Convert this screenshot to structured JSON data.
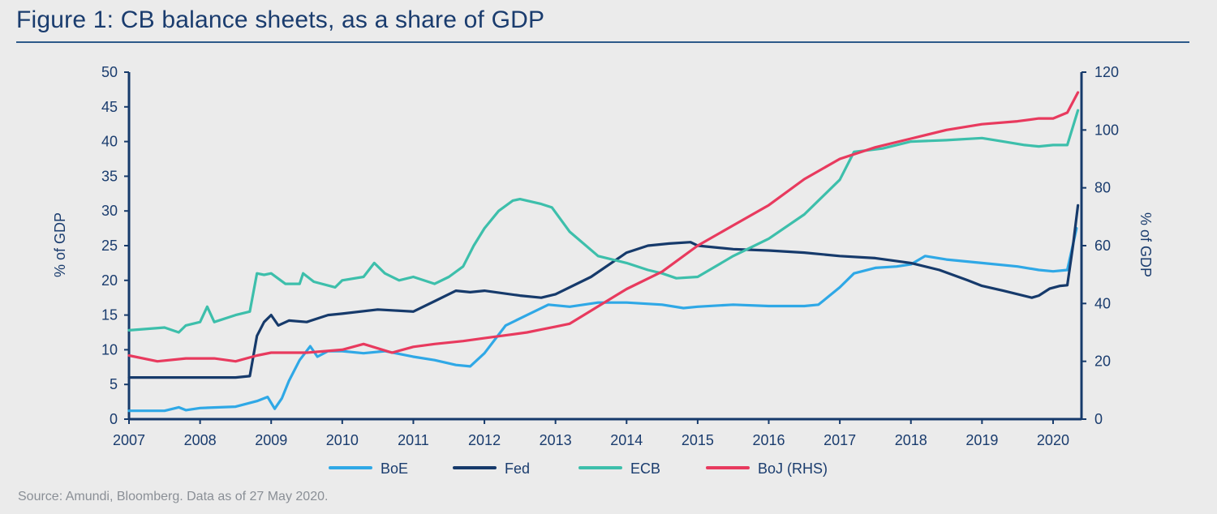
{
  "page": {
    "title": "Figure 1: CB balance sheets, as a share of GDP",
    "source": "Source: Amundi, Bloomberg. Data as of 27 May 2020."
  },
  "chart_data": {
    "type": "line",
    "title": "Figure 1: CB balance sheets, as a share of GDP",
    "xlabel": "",
    "ylabel": "% of GDP",
    "ylabel_right": "% of GDP",
    "xlim": [
      2007,
      2020.4
    ],
    "ylim": [
      0,
      50
    ],
    "ylim_right": [
      0,
      120
    ],
    "x_ticks": [
      "2007",
      "2008",
      "2009",
      "2010",
      "2011",
      "2012",
      "2013",
      "2014",
      "2015",
      "2016",
      "2017",
      "2018",
      "2019",
      "2020"
    ],
    "y_ticks": [
      "0",
      "5",
      "10",
      "15",
      "20",
      "25",
      "30",
      "35",
      "40",
      "45",
      "50"
    ],
    "y_ticks_right": [
      "0",
      "20",
      "40",
      "60",
      "80",
      "100",
      "120"
    ],
    "legend_position": "bottom",
    "series": [
      {
        "name": "BoE",
        "color": "#2fa8e6",
        "axis": "left",
        "x": [
          2007.0,
          2007.5,
          2007.7,
          2007.8,
          2008.0,
          2008.5,
          2008.8,
          2008.95,
          2009.05,
          2009.15,
          2009.25,
          2009.4,
          2009.55,
          2009.65,
          2009.8,
          2010.0,
          2010.3,
          2010.6,
          2011.0,
          2011.3,
          2011.6,
          2011.8,
          2012.0,
          2012.3,
          2012.6,
          2012.9,
          2013.2,
          2013.6,
          2014.0,
          2014.5,
          2014.8,
          2015.0,
          2015.5,
          2016.0,
          2016.5,
          2016.7,
          2017.0,
          2017.2,
          2017.5,
          2017.8,
          2018.0,
          2018.2,
          2018.5,
          2019.0,
          2019.5,
          2019.8,
          2020.0,
          2020.2,
          2020.33
        ],
        "y": [
          1.2,
          1.2,
          1.7,
          1.3,
          1.6,
          1.8,
          2.6,
          3.2,
          1.5,
          3.0,
          5.5,
          8.5,
          10.5,
          9.0,
          9.8,
          9.8,
          9.5,
          9.8,
          9.0,
          8.5,
          7.8,
          7.6,
          9.5,
          13.5,
          15.0,
          16.5,
          16.2,
          16.8,
          16.8,
          16.5,
          16.0,
          16.2,
          16.5,
          16.3,
          16.3,
          16.5,
          19.0,
          21.0,
          21.8,
          22.0,
          22.3,
          23.5,
          23.0,
          22.5,
          22.0,
          21.5,
          21.3,
          21.5,
          27.5
        ]
      },
      {
        "name": "Fed",
        "color": "#163a6b",
        "axis": "left",
        "x": [
          2007.0,
          2007.5,
          2008.0,
          2008.5,
          2008.7,
          2008.8,
          2008.9,
          2009.0,
          2009.1,
          2009.25,
          2009.5,
          2009.8,
          2010.0,
          2010.5,
          2011.0,
          2011.3,
          2011.6,
          2011.8,
          2012.0,
          2012.5,
          2012.8,
          2013.0,
          2013.5,
          2014.0,
          2014.3,
          2014.6,
          2014.9,
          2015.0,
          2015.5,
          2016.0,
          2016.5,
          2017.0,
          2017.5,
          2018.0,
          2018.4,
          2018.8,
          2019.0,
          2019.3,
          2019.7,
          2019.8,
          2019.95,
          2020.1,
          2020.2,
          2020.28,
          2020.35
        ],
        "y": [
          6.0,
          6.0,
          6.0,
          6.0,
          6.2,
          12.0,
          14.0,
          15.0,
          13.5,
          14.2,
          14.0,
          15.0,
          15.2,
          15.8,
          15.5,
          17.0,
          18.5,
          18.3,
          18.5,
          17.8,
          17.5,
          18.0,
          20.5,
          24.0,
          25.0,
          25.3,
          25.5,
          25.0,
          24.5,
          24.3,
          24.0,
          23.5,
          23.2,
          22.5,
          21.5,
          20.0,
          19.2,
          18.5,
          17.5,
          17.8,
          18.8,
          19.2,
          19.3,
          25.0,
          30.8
        ]
      },
      {
        "name": "ECB",
        "color": "#3dbfab",
        "axis": "left",
        "x": [
          2007.0,
          2007.5,
          2007.7,
          2007.8,
          2008.0,
          2008.1,
          2008.2,
          2008.5,
          2008.7,
          2008.8,
          2008.9,
          2009.0,
          2009.2,
          2009.4,
          2009.45,
          2009.6,
          2009.9,
          2010.0,
          2010.3,
          2010.45,
          2010.6,
          2010.8,
          2011.0,
          2011.3,
          2011.5,
          2011.7,
          2011.85,
          2012.0,
          2012.2,
          2012.4,
          2012.5,
          2012.8,
          2012.95,
          2013.2,
          2013.6,
          2014.0,
          2014.3,
          2014.5,
          2014.7,
          2015.0,
          2015.5,
          2016.0,
          2016.5,
          2017.0,
          2017.2,
          2017.6,
          2018.0,
          2018.5,
          2019.0,
          2019.3,
          2019.6,
          2019.8,
          2020.0,
          2020.2,
          2020.35
        ],
        "y": [
          12.8,
          13.2,
          12.5,
          13.5,
          14.0,
          16.2,
          14.0,
          15.0,
          15.5,
          21.0,
          20.8,
          21.0,
          19.5,
          19.5,
          21.0,
          19.8,
          19.0,
          20.0,
          20.5,
          22.5,
          21.0,
          20.0,
          20.5,
          19.5,
          20.5,
          22.0,
          25.0,
          27.5,
          30.0,
          31.5,
          31.7,
          31.0,
          30.5,
          27.0,
          23.5,
          22.5,
          21.5,
          21.0,
          20.3,
          20.5,
          23.5,
          26.0,
          29.5,
          34.5,
          38.5,
          39.0,
          40.0,
          40.2,
          40.5,
          40.0,
          39.5,
          39.3,
          39.5,
          39.5,
          44.5
        ]
      },
      {
        "name": "BoJ (RHS)",
        "color": "#e83a5e",
        "axis": "right",
        "x": [
          2007.0,
          2007.4,
          2007.8,
          2008.2,
          2008.5,
          2008.8,
          2009.0,
          2009.5,
          2010.0,
          2010.3,
          2010.7,
          2011.0,
          2011.3,
          2011.7,
          2012.0,
          2012.3,
          2012.6,
          2012.8,
          2013.0,
          2013.2,
          2013.6,
          2014.0,
          2014.5,
          2015.0,
          2015.5,
          2016.0,
          2016.5,
          2017.0,
          2017.5,
          2018.0,
          2018.5,
          2019.0,
          2019.5,
          2019.8,
          2020.0,
          2020.2,
          2020.35
        ],
        "y": [
          22,
          20,
          21,
          21,
          20,
          22,
          23,
          23,
          24,
          26,
          23,
          25,
          26,
          27,
          28,
          29,
          30,
          31,
          32,
          33,
          39,
          45,
          51,
          60,
          67,
          74,
          83,
          90,
          94,
          97,
          100,
          102,
          103,
          104,
          104,
          106,
          113
        ]
      }
    ]
  }
}
